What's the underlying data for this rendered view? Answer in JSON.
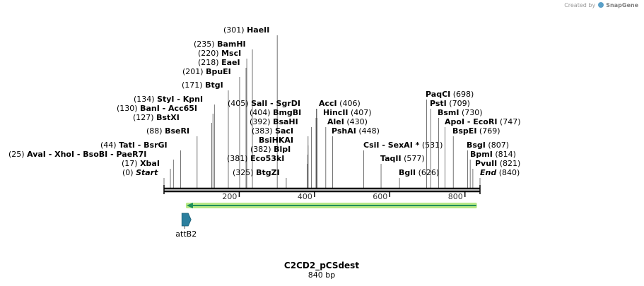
{
  "credit": {
    "prefix": "Created by",
    "brand": "SnapGene"
  },
  "map": {
    "title": "C2CD2_pCSdest",
    "length_label": "840 bp",
    "length": 840,
    "ticks": [
      200,
      400,
      600,
      800
    ],
    "colors": {
      "backbone": "#000000",
      "feature_arrow": "#1f8f5a",
      "feature_glow": "#b8e986",
      "attB2": "#2b7f9e"
    },
    "features": [
      {
        "name": "attB2",
        "start": 55,
        "end": 80,
        "direction": "forward",
        "color": "#2b7f9e"
      },
      {
        "name": "",
        "start": 60,
        "end": 830,
        "direction": "reverse",
        "color": "#1f8f5a"
      }
    ],
    "sites": [
      {
        "pos": "(301)",
        "name": "HaeII",
        "site": 301,
        "italic": false
      },
      {
        "pos": "(235)",
        "name": "BamHI",
        "site": 235,
        "italic": false
      },
      {
        "pos": "(220)",
        "name": "MscI",
        "site": 220,
        "italic": false
      },
      {
        "pos": "(218)",
        "name": "EaeI",
        "site": 218,
        "italic": false
      },
      {
        "pos": "(201)",
        "name": "BpuEI",
        "site": 201,
        "italic": false
      },
      {
        "pos": "(171)",
        "name": "BtgI",
        "site": 171,
        "italic": false
      },
      {
        "pos": "(134)",
        "name": "StyI",
        "name2": "- KpnI",
        "site": 134,
        "italic": false
      },
      {
        "pos": "(130)",
        "name": "BanI",
        "name2": "- Acc65I",
        "site": 130,
        "italic": false
      },
      {
        "pos": "(127)",
        "name": "BstXI",
        "site": 127,
        "italic": false
      },
      {
        "pos": "(88)",
        "name": "BseRI",
        "site": 88,
        "italic": false
      },
      {
        "pos": "(44)",
        "name": "TatI",
        "name2": "- BsrGI",
        "site": 44,
        "italic": false
      },
      {
        "pos": "(25)",
        "name": "AvaI",
        "name2": "- XhoI",
        "name3": "- BsoBI",
        "name4": "- PaeR7I",
        "site": 25,
        "italic": false
      },
      {
        "pos": "(17)",
        "name": "XbaI",
        "site": 17,
        "italic": false
      },
      {
        "pos": "(0)",
        "name": "Start",
        "site": 0,
        "italic": true
      },
      {
        "pos": "(405)",
        "name": "SalI",
        "name2": "- SgrDI",
        "site": 405,
        "italic": false
      },
      {
        "pos": "(404)",
        "name": "BmgBI",
        "site": 404,
        "italic": false
      },
      {
        "pos": "(392)",
        "name": "BsaHI",
        "site": 392,
        "italic": false
      },
      {
        "pos": "(383)",
        "name": "SacI",
        "site": 383,
        "italic": false
      },
      {
        "pos": "",
        "name": "BsiHKAI",
        "site": 383,
        "italic": false
      },
      {
        "pos": "(382)",
        "name": "BlpI",
        "site": 382,
        "italic": false
      },
      {
        "pos": "(381)",
        "name": "Eco53kI",
        "site": 381,
        "italic": false
      },
      {
        "pos": "(325)",
        "name": "BtgZI",
        "site": 325,
        "italic": false
      },
      {
        "pos": "(406)",
        "name": "AccI",
        "site": 406,
        "italic": false
      },
      {
        "pos": "(407)",
        "name": "HincII",
        "site": 407,
        "italic": false
      },
      {
        "pos": "(430)",
        "name": "AleI",
        "site": 430,
        "italic": false
      },
      {
        "pos": "(448)",
        "name": "PshAI",
        "site": 448,
        "italic": false
      },
      {
        "pos": "(531)",
        "name": "CsiI",
        "name2": "- SexAI *",
        "site": 531,
        "italic": false
      },
      {
        "pos": "(577)",
        "name": "TaqII",
        "site": 577,
        "italic": false
      },
      {
        "pos": "(626)",
        "name": "BglI",
        "site": 626,
        "italic": false
      },
      {
        "pos": "(698)",
        "name": "PaqCI",
        "site": 698,
        "italic": false
      },
      {
        "pos": "(709)",
        "name": "PstI",
        "site": 709,
        "italic": false
      },
      {
        "pos": "(730)",
        "name": "BsmI",
        "site": 730,
        "italic": false
      },
      {
        "pos": "(747)",
        "name": "ApoI",
        "name2": "- EcoRI",
        "site": 747,
        "italic": false
      },
      {
        "pos": "(769)",
        "name": "BspEI",
        "site": 769,
        "italic": false
      },
      {
        "pos": "(807)",
        "name": "BsgI",
        "site": 807,
        "italic": false
      },
      {
        "pos": "(814)",
        "name": "BpmI",
        "site": 814,
        "italic": false
      },
      {
        "pos": "(821)",
        "name": "PvuII",
        "site": 821,
        "italic": false
      },
      {
        "pos": "(840)",
        "name": "End",
        "site": 840,
        "italic": true
      }
    ]
  }
}
